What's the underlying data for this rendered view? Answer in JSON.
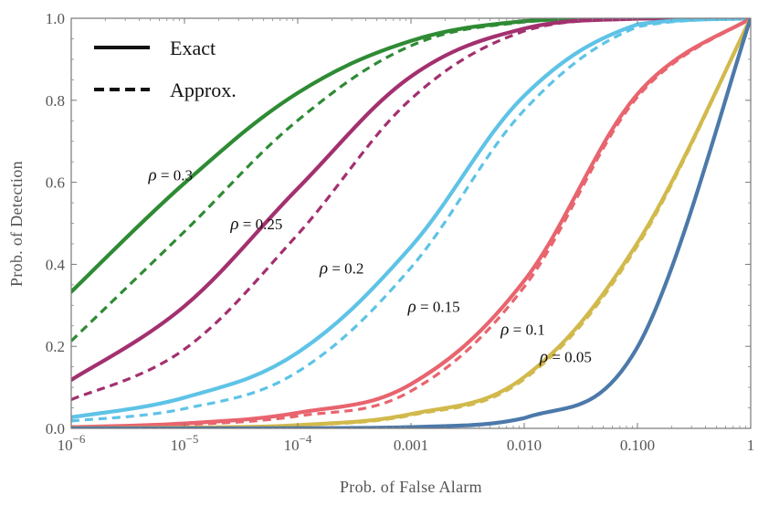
{
  "chart_data": {
    "type": "line",
    "xscale": "log",
    "xlabel": "Prob. of False Alarm",
    "ylabel": "Prob. of Detection",
    "xlim": [
      1e-06,
      1
    ],
    "ylim": [
      0,
      1.0
    ],
    "x_ticks": [
      {
        "value": 1e-06,
        "base": "10",
        "exp": "−6",
        "text": ""
      },
      {
        "value": 1e-05,
        "base": "10",
        "exp": "−5",
        "text": ""
      },
      {
        "value": 0.0001,
        "base": "10",
        "exp": "−4",
        "text": ""
      },
      {
        "value": 0.001,
        "base": "",
        "exp": "",
        "text": "0.001"
      },
      {
        "value": 0.01,
        "base": "",
        "exp": "",
        "text": "0.010"
      },
      {
        "value": 0.1,
        "base": "",
        "exp": "",
        "text": "0.100"
      },
      {
        "value": 1,
        "base": "",
        "exp": "",
        "text": "1"
      }
    ],
    "y_ticks": [
      {
        "value": 0.0,
        "text": "0.0"
      },
      {
        "value": 0.2,
        "text": "0.2"
      },
      {
        "value": 0.4,
        "text": "0.4"
      },
      {
        "value": 0.6,
        "text": "0.6"
      },
      {
        "value": 0.8,
        "text": "0.8"
      },
      {
        "value": 1.0,
        "text": "1.0"
      }
    ],
    "legend": {
      "position": "top-left",
      "entries": [
        {
          "label": "Exact",
          "style": "solid"
        },
        {
          "label": "Approx.",
          "style": "dashed"
        }
      ]
    },
    "series": [
      {
        "rho": "0.3",
        "color": "#2e8b34",
        "label_x": 4.8e-06,
        "label_y": 0.605,
        "exact": {
          "x": [
            1e-06,
            1e-05,
            0.0001,
            0.001,
            0.01,
            0.1,
            1
          ],
          "y": [
            0.333,
            0.598,
            0.818,
            0.945,
            0.993,
            1.0,
            1.0
          ]
        },
        "approx": {
          "x": [
            1e-06,
            1e-05,
            0.0001,
            0.001,
            0.01,
            0.1,
            1
          ],
          "y": [
            0.213,
            0.48,
            0.751,
            0.933,
            0.991,
            1.0,
            1.0
          ]
        }
      },
      {
        "rho": "0.25",
        "color": "#a3306f",
        "label_x": 2.55e-05,
        "label_y": 0.485,
        "exact": {
          "x": [
            1e-06,
            1e-05,
            0.0001,
            0.001,
            0.01,
            0.1,
            1
          ],
          "y": [
            0.118,
            0.298,
            0.585,
            0.858,
            0.975,
            0.999,
            1.0
          ]
        },
        "approx": {
          "x": [
            1e-06,
            1e-05,
            0.0001,
            0.001,
            0.01,
            0.1,
            1
          ],
          "y": [
            0.07,
            0.193,
            0.473,
            0.803,
            0.969,
            0.999,
            1.0
          ]
        }
      },
      {
        "rho": "0.2",
        "color": "#5ec3e6",
        "label_x": 0.000156,
        "label_y": 0.378,
        "exact": {
          "x": [
            1e-06,
            1e-05,
            0.0001,
            0.001,
            0.01,
            0.1,
            1
          ],
          "y": [
            0.027,
            0.075,
            0.185,
            0.443,
            0.811,
            0.985,
            1.0
          ]
        },
        "approx": {
          "x": [
            1e-06,
            1e-05,
            0.0001,
            0.001,
            0.01,
            0.1,
            1
          ],
          "y": [
            0.018,
            0.048,
            0.138,
            0.392,
            0.776,
            0.979,
            1.0
          ]
        }
      },
      {
        "rho": "0.15",
        "color": "#e8646e",
        "label_x": 0.00094,
        "label_y": 0.284,
        "exact": {
          "x": [
            1e-06,
            1e-05,
            0.0001,
            0.001,
            0.01,
            0.1,
            1
          ],
          "y": [
            0.003,
            0.012,
            0.038,
            0.108,
            0.36,
            0.815,
            1.0
          ]
        },
        "approx": {
          "x": [
            1e-06,
            1e-05,
            0.0001,
            0.001,
            0.01,
            0.1,
            1
          ],
          "y": [
            0.002,
            0.009,
            0.03,
            0.091,
            0.345,
            0.808,
            1.0
          ]
        }
      },
      {
        "rho": "0.1",
        "color": "#d1b94c",
        "label_x": 0.0062,
        "label_y": 0.228,
        "exact": {
          "x": [
            1e-06,
            1e-05,
            0.0001,
            0.001,
            0.01,
            0.1,
            1
          ],
          "y": [
            0.0005,
            0.002,
            0.008,
            0.035,
            0.125,
            0.452,
            1.0
          ]
        },
        "approx": {
          "x": [
            1e-06,
            1e-05,
            0.0001,
            0.001,
            0.01,
            0.1,
            1
          ],
          "y": [
            0.0004,
            0.0015,
            0.007,
            0.032,
            0.12,
            0.445,
            1.0
          ]
        }
      },
      {
        "rho": "0.05",
        "color": "#4c79aa",
        "label_x": 0.0137,
        "label_y": 0.162,
        "exact": {
          "x": [
            1e-06,
            1e-05,
            0.0001,
            0.001,
            0.01,
            0.1,
            1
          ],
          "y": [
            0.0,
            0.0,
            0.0003,
            0.003,
            0.025,
            0.198,
            1.0
          ]
        },
        "approx": {
          "x": [
            1e-06,
            1e-05,
            0.0001,
            0.001,
            0.01,
            0.1,
            1
          ],
          "y": [
            0.0,
            0.0,
            0.0003,
            0.003,
            0.025,
            0.198,
            1.0
          ]
        }
      }
    ]
  }
}
